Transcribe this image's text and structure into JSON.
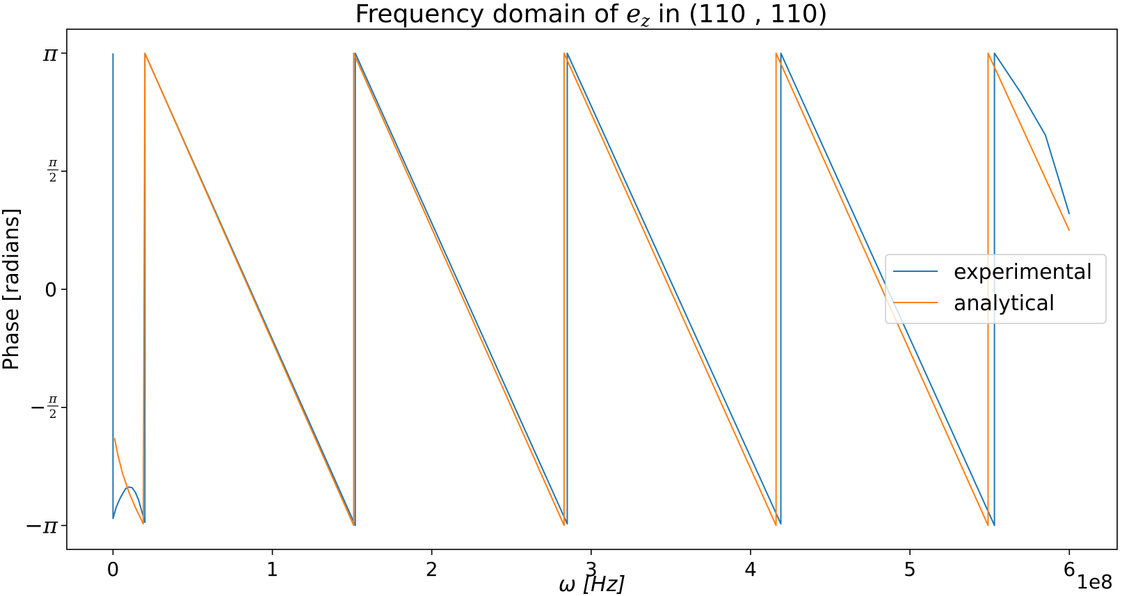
{
  "chart_data": {
    "type": "line",
    "title": {
      "prefix": "Frequency domain of ",
      "variable": "e",
      "subscript": "z",
      "suffix": " in (110 , 110)"
    },
    "xlabel": "ω [Hz]",
    "ylabel": "Phase [radians]",
    "x_offset_label": "1e8",
    "xlim": [
      -0.29,
      6.3
    ],
    "ylim": [
      -3.46,
      3.46
    ],
    "x_ticks": [
      {
        "value": 0,
        "label": "0"
      },
      {
        "value": 1,
        "label": "1"
      },
      {
        "value": 2,
        "label": "2"
      },
      {
        "value": 3,
        "label": "3"
      },
      {
        "value": 4,
        "label": "4"
      },
      {
        "value": 5,
        "label": "5"
      },
      {
        "value": 6,
        "label": "6"
      }
    ],
    "y_ticks": [
      {
        "value": 3.14159,
        "label": "π",
        "kind": "pi"
      },
      {
        "value": 1.5708,
        "label": "π/2",
        "kind": "frac",
        "numerator": "π",
        "denominator": "2",
        "sign": ""
      },
      {
        "value": 0,
        "label": "0",
        "kind": "plain"
      },
      {
        "value": -1.5708,
        "label": "−π/2",
        "kind": "frac",
        "numerator": "π",
        "denominator": "2",
        "sign": "−"
      },
      {
        "value": -3.14159,
        "label": "−π",
        "kind": "pi"
      }
    ],
    "grid": false,
    "legend_position": "center-right",
    "series": [
      {
        "name": "experimental",
        "color": "#1f77b4",
        "points": [
          [
            0.0,
            3.14
          ],
          [
            0.0,
            0.0
          ],
          [
            0.0,
            -3.05
          ],
          [
            0.02,
            -2.9
          ],
          [
            0.04,
            -2.8
          ],
          [
            0.06,
            -2.72
          ],
          [
            0.08,
            -2.65
          ],
          [
            0.1,
            -2.63
          ],
          [
            0.12,
            -2.64
          ],
          [
            0.14,
            -2.7
          ],
          [
            0.16,
            -2.8
          ],
          [
            0.18,
            -2.95
          ],
          [
            0.2,
            -3.1
          ],
          [
            0.2,
            3.14
          ],
          [
            1.52,
            -3.14
          ],
          [
            1.52,
            3.14
          ],
          [
            2.85,
            -3.12
          ],
          [
            2.85,
            3.14
          ],
          [
            4.19,
            -3.12
          ],
          [
            4.19,
            3.14
          ],
          [
            5.53,
            -3.14
          ],
          [
            5.53,
            3.14
          ],
          [
            5.7,
            2.6
          ],
          [
            5.85,
            2.05
          ],
          [
            6.0,
            1.0
          ]
        ]
      },
      {
        "name": "analytical",
        "color": "#ff7f0e",
        "points": [
          [
            0.01,
            -1.98
          ],
          [
            0.03,
            -2.2
          ],
          [
            0.06,
            -2.45
          ],
          [
            0.1,
            -2.7
          ],
          [
            0.14,
            -2.9
          ],
          [
            0.19,
            -3.12
          ],
          [
            0.2,
            3.14
          ],
          [
            1.51,
            -3.14
          ],
          [
            1.51,
            3.14
          ],
          [
            2.83,
            -3.14
          ],
          [
            2.83,
            3.14
          ],
          [
            4.16,
            -3.14
          ],
          [
            4.16,
            3.14
          ],
          [
            5.49,
            -3.14
          ],
          [
            5.49,
            3.14
          ],
          [
            6.0,
            0.78
          ]
        ]
      }
    ]
  }
}
